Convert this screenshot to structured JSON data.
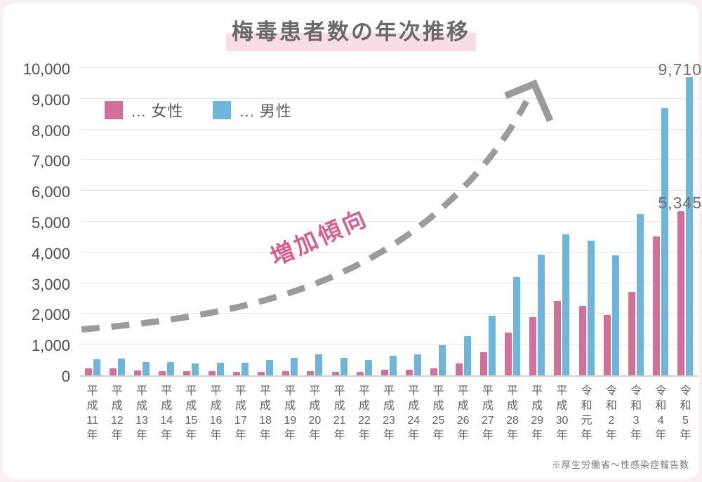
{
  "title": {
    "text": "梅毒患者数の年次推移"
  },
  "legend": [
    {
      "key": "female",
      "label": "... 女性",
      "color": "#d3709a"
    },
    {
      "key": "male",
      "label": "... 男性",
      "color": "#6fb5da"
    }
  ],
  "trend_annotation": "増加傾向",
  "source_note": "※厚生労働省～性感染症報告数",
  "colors": {
    "female_bar": "#d3709a",
    "male_bar": "#6fb5da",
    "title_highlight": "#f9dde6",
    "trend_arrow": "#9b9b9b",
    "trend_text": "#d55f90",
    "grid": "#e5e5e5",
    "axis": "#cfcfcf"
  },
  "chart_data": {
    "type": "bar",
    "title": "梅毒患者数の年次推移",
    "categories": [
      "平成11年",
      "平成12年",
      "平成13年",
      "平成14年",
      "平成15年",
      "平成16年",
      "平成17年",
      "平成18年",
      "平成19年",
      "平成20年",
      "平成21年",
      "平成22年",
      "平成23年",
      "平成24年",
      "平成25年",
      "平成26年",
      "平成27年",
      "平成28年",
      "平成29年",
      "平成30年",
      "令和元年",
      "令和2年",
      "令和3年",
      "令和4年",
      "令和5年"
    ],
    "series": [
      {
        "name": "女性",
        "color": "#d3709a",
        "values": [
          220,
          221,
          150,
          141,
          126,
          126,
          121,
          124,
          139,
          140,
          120,
          124,
          177,
          183,
          235,
          377,
          760,
          1386,
          1895,
          2416,
          2255,
          1965,
          2717,
          4519,
          5345
        ]
      },
      {
        "name": "男性",
        "color": "#6fb5da",
        "values": [
          533,
          538,
          435,
          434,
          383,
          407,
          422,
          513,
          580,
          687,
          571,
          497,
          650,
          692,
          993,
          1284,
          1930,
          3189,
          3931,
          4591,
          4387,
          3902,
          5261,
          8701,
          9710
        ]
      }
    ],
    "xlabel": "",
    "ylabel": "",
    "ylim": [
      0,
      10000
    ],
    "ytick_step": 1000,
    "grid": true,
    "legend_position": "top-left",
    "annotations": [
      {
        "text": "9,710",
        "series": "男性",
        "category": "令和5年",
        "value": 9710
      },
      {
        "text": "5,345",
        "series": "女性",
        "category": "令和5年",
        "value": 5345
      }
    ]
  }
}
